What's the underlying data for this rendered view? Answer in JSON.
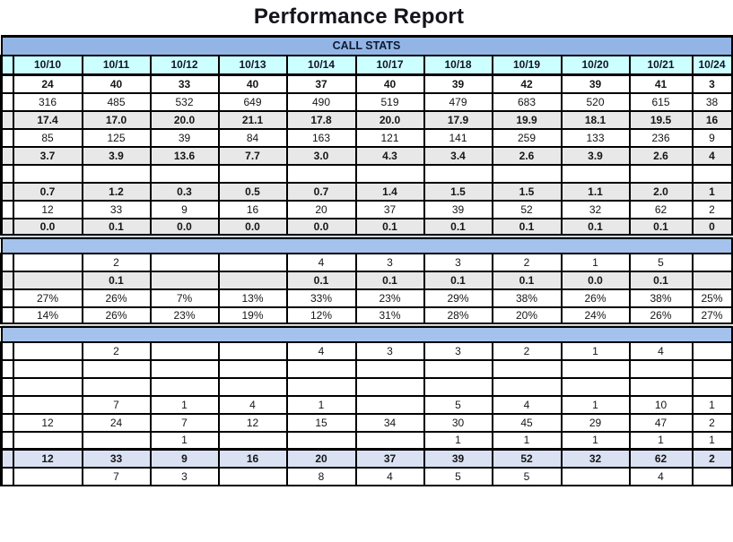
{
  "title": "Performance Report",
  "colors": {
    "band_header": "#93B5E5",
    "band_section": "#A4C2EB",
    "date_row": "#CCFFFF",
    "shaded_row": "#E8E8E8",
    "total_row": "#D9E1F2",
    "border": "#000000"
  },
  "table": {
    "dates": [
      "10/10",
      "10/11",
      "10/12",
      "10/13",
      "10/14",
      "10/17",
      "10/18",
      "10/19",
      "10/20",
      "10/21",
      "10/24"
    ],
    "sections": [
      {
        "band_label": "CALL STATS",
        "rows": [
          {
            "bold": true,
            "shade": "white",
            "values": [
              "24",
              "40",
              "33",
              "40",
              "37",
              "40",
              "39",
              "42",
              "39",
              "41",
              "3"
            ]
          },
          {
            "bold": false,
            "shade": "white",
            "values": [
              "316",
              "485",
              "532",
              "649",
              "490",
              "519",
              "479",
              "683",
              "520",
              "615",
              "38"
            ]
          },
          {
            "bold": true,
            "shade": "gray",
            "values": [
              "17.4",
              "17.0",
              "20.0",
              "21.1",
              "17.8",
              "20.0",
              "17.9",
              "19.9",
              "18.1",
              "19.5",
              "16"
            ]
          },
          {
            "bold": false,
            "shade": "white",
            "values": [
              "85",
              "125",
              "39",
              "84",
              "163",
              "121",
              "141",
              "259",
              "133",
              "236",
              "9"
            ]
          },
          {
            "bold": true,
            "shade": "gray",
            "values": [
              "3.7",
              "3.9",
              "13.6",
              "7.7",
              "3.0",
              "4.3",
              "3.4",
              "2.6",
              "3.9",
              "2.6",
              "4"
            ]
          },
          {
            "bold": false,
            "shade": "white",
            "values": [
              "",
              "",
              "",
              "",
              "",
              "",
              "",
              "",
              "",
              "",
              ""
            ]
          },
          {
            "bold": true,
            "shade": "gray",
            "values": [
              "0.7",
              "1.2",
              "0.3",
              "0.5",
              "0.7",
              "1.4",
              "1.5",
              "1.5",
              "1.1",
              "2.0",
              "1"
            ]
          },
          {
            "bold": false,
            "shade": "white",
            "values": [
              "12",
              "33",
              "9",
              "16",
              "20",
              "37",
              "39",
              "52",
              "32",
              "62",
              "2"
            ]
          },
          {
            "bold": true,
            "shade": "gray",
            "values": [
              "0.0",
              "0.1",
              "0.0",
              "0.0",
              "0.0",
              "0.1",
              "0.1",
              "0.1",
              "0.1",
              "0.1",
              "0"
            ]
          }
        ]
      },
      {
        "band_label": "",
        "rows": [
          {
            "bold": false,
            "shade": "white",
            "values": [
              "",
              "2",
              "",
              "",
              "4",
              "3",
              "3",
              "2",
              "1",
              "5",
              ""
            ]
          },
          {
            "bold": true,
            "shade": "gray",
            "values": [
              "",
              "0.1",
              "",
              "",
              "0.1",
              "0.1",
              "0.1",
              "0.1",
              "0.0",
              "0.1",
              ""
            ]
          },
          {
            "bold": false,
            "shade": "white",
            "values": [
              "27%",
              "26%",
              "7%",
              "13%",
              "33%",
              "23%",
              "29%",
              "38%",
              "26%",
              "38%",
              "25%"
            ]
          },
          {
            "bold": false,
            "shade": "white",
            "values": [
              "14%",
              "26%",
              "23%",
              "19%",
              "12%",
              "31%",
              "28%",
              "20%",
              "24%",
              "26%",
              "27%"
            ]
          }
        ]
      },
      {
        "band_label": "",
        "rows": [
          {
            "bold": false,
            "shade": "white",
            "values": [
              "",
              "2",
              "",
              "",
              "4",
              "3",
              "3",
              "2",
              "1",
              "4",
              ""
            ]
          },
          {
            "bold": false,
            "shade": "white",
            "values": [
              "",
              "",
              "",
              "",
              "",
              "",
              "",
              "",
              "",
              "",
              ""
            ]
          },
          {
            "bold": false,
            "shade": "white",
            "values": [
              "",
              "",
              "",
              "",
              "",
              "",
              "",
              "",
              "",
              "",
              ""
            ]
          },
          {
            "bold": false,
            "shade": "white",
            "values": [
              "",
              "7",
              "1",
              "4",
              "1",
              "",
              "5",
              "4",
              "1",
              "10",
              "1"
            ]
          },
          {
            "bold": false,
            "shade": "white",
            "values": [
              "12",
              "24",
              "7",
              "12",
              "15",
              "34",
              "30",
              "45",
              "29",
              "47",
              "2"
            ]
          },
          {
            "bold": false,
            "shade": "white",
            "values": [
              "",
              "",
              "1",
              "",
              "",
              "",
              "1",
              "1",
              "1",
              "1",
              "1"
            ]
          },
          {
            "bold": true,
            "shade": "total",
            "values": [
              "12",
              "33",
              "9",
              "16",
              "20",
              "37",
              "39",
              "52",
              "32",
              "62",
              "2"
            ]
          },
          {
            "bold": false,
            "shade": "white",
            "values": [
              "",
              "7",
              "3",
              "",
              "8",
              "4",
              "5",
              "5",
              "",
              "4",
              ""
            ]
          }
        ]
      }
    ]
  }
}
